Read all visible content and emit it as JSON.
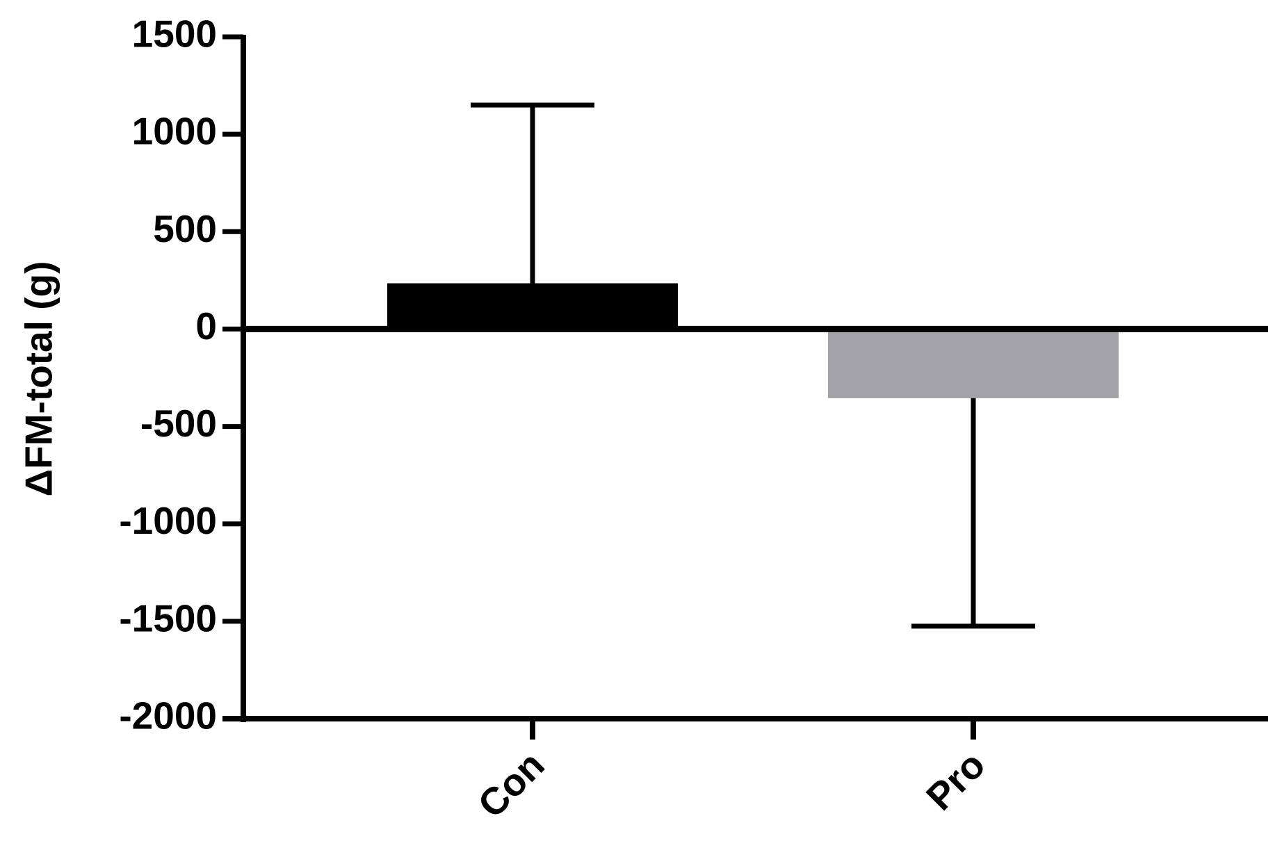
{
  "chart_data": {
    "type": "bar",
    "y_label": "ΔFM-total (g)",
    "categories": [
      "Con",
      "Pro"
    ],
    "values": [
      235,
      -355
    ],
    "errors": [
      915,
      1170
    ],
    "colors": [
      "#000000",
      "#a3a2a6"
    ],
    "ylim": [
      -2000,
      1500
    ],
    "yticks": [
      -2000,
      -1500,
      -1000,
      -500,
      0,
      500,
      1000,
      1500
    ]
  }
}
